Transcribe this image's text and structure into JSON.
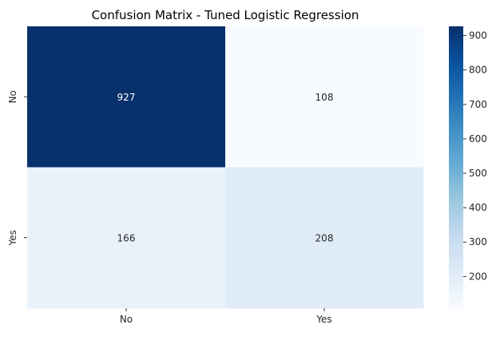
{
  "chart_data": {
    "type": "heatmap",
    "title": "Confusion Matrix - Tuned Logistic Regression",
    "row_labels": [
      "No",
      "Yes"
    ],
    "col_labels": [
      "No",
      "Yes"
    ],
    "values": [
      [
        927,
        108
      ],
      [
        166,
        208
      ]
    ],
    "colormap": "Blues",
    "colorbar": {
      "min": 108,
      "max": 927,
      "ticks": [
        200,
        300,
        400,
        500,
        600,
        700,
        800,
        900
      ]
    },
    "colors": {
      "dark": "#08306b",
      "light": "#f7fbff",
      "text_on_dark": "#ffffff",
      "text_on_light": "#262626"
    }
  }
}
